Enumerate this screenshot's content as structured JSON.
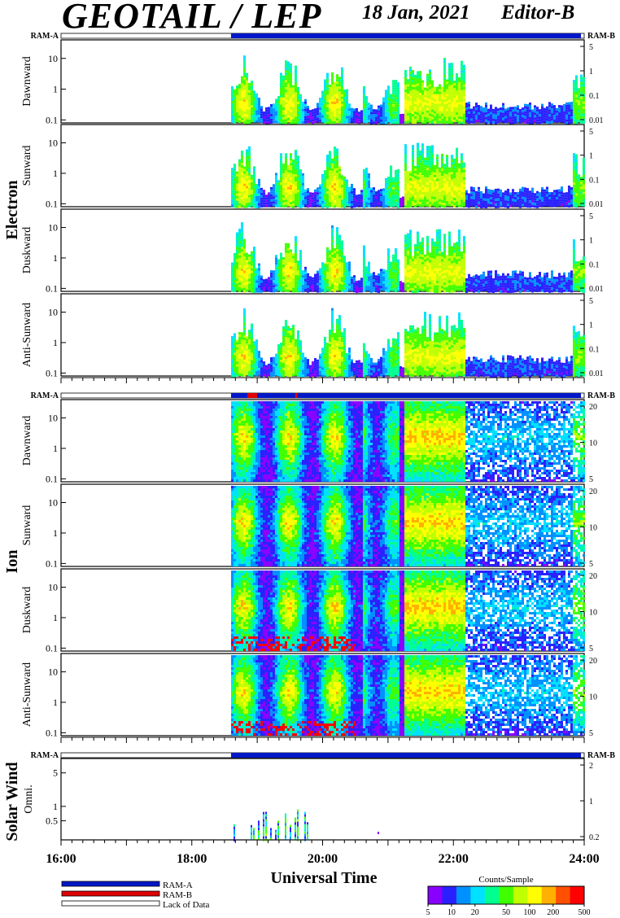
{
  "header": {
    "title": "GEOTAIL / LEP",
    "date": "18 Jan, 2021",
    "editor": "Editor-B"
  },
  "colors": {
    "ram_a": "#0018c8",
    "ram_b": "#e00000",
    "lack_of_data": "#ffffff",
    "spectrogram_scale": [
      "#8a00ff",
      "#2a20ff",
      "#0090ff",
      "#00e0ff",
      "#00ff90",
      "#40ff00",
      "#c0ff00",
      "#ffff00",
      "#ffb000",
      "#ff5000",
      "#ff0000"
    ]
  },
  "chart_data": {
    "type": "heatmap",
    "x_axis": {
      "label": "Universal Time",
      "range_hours": [
        16,
        24
      ],
      "tick_labels": [
        "16:00",
        "18:00",
        "20:00",
        "22:00",
        "24:00"
      ],
      "tick_hours": [
        16,
        18,
        20,
        22,
        24
      ]
    },
    "data_start_hour": 18.6,
    "groups": [
      {
        "label": "Electron",
        "ram_labels": {
          "left": "RAM-A",
          "right": "RAM-B"
        },
        "panels": [
          {
            "label": "Dawnward",
            "left_ticks": [
              "0.1",
              "1",
              "10"
            ],
            "left_tick_values": [
              0.1,
              1,
              10
            ],
            "left_range": [
              0.08,
              40
            ],
            "right_ticks": [
              "0.01",
              "0.1",
              "1",
              "5"
            ]
          },
          {
            "label": "Sunward",
            "left_ticks": [
              "0.1",
              "1",
              "10"
            ],
            "left_tick_values": [
              0.1,
              1,
              10
            ],
            "left_range": [
              0.08,
              40
            ],
            "right_ticks": [
              "0.01",
              "0.1",
              "1",
              "5"
            ]
          },
          {
            "label": "Duskward",
            "left_ticks": [
              "0.1",
              "1",
              "10"
            ],
            "left_tick_values": [
              0.1,
              1,
              10
            ],
            "left_range": [
              0.08,
              40
            ],
            "right_ticks": [
              "0.01",
              "0.1",
              "1",
              "5"
            ]
          },
          {
            "label": "Anti-Sunward",
            "left_ticks": [
              "0.1",
              "1",
              "10"
            ],
            "left_tick_values": [
              0.1,
              1,
              10
            ],
            "left_range": [
              0.08,
              40
            ],
            "right_ticks": [
              "0.01",
              "0.1",
              "1",
              "5"
            ]
          }
        ]
      },
      {
        "label": "Ion",
        "ram_labels": {
          "left": "RAM-A",
          "right": "RAM-B"
        },
        "panels": [
          {
            "label": "Dawnward",
            "left_ticks": [
              "0.1",
              "1",
              "10"
            ],
            "left_tick_values": [
              0.1,
              1,
              10
            ],
            "left_range": [
              0.08,
              40
            ],
            "right_ticks": [
              "5",
              "10",
              "20"
            ]
          },
          {
            "label": "Sunward",
            "left_ticks": [
              "0.1",
              "1",
              "10"
            ],
            "left_tick_values": [
              0.1,
              1,
              10
            ],
            "left_range": [
              0.08,
              40
            ],
            "right_ticks": [
              "5",
              "10",
              "20"
            ]
          },
          {
            "label": "Duskward",
            "left_ticks": [
              "0.1",
              "1",
              "10"
            ],
            "left_tick_values": [
              0.1,
              1,
              10
            ],
            "left_range": [
              0.08,
              40
            ],
            "right_ticks": [
              "5",
              "10",
              "20"
            ]
          },
          {
            "label": "Anti-Sunward",
            "left_ticks": [
              "0.1",
              "1",
              "10"
            ],
            "left_tick_values": [
              0.1,
              1,
              10
            ],
            "left_range": [
              0.08,
              40
            ],
            "right_ticks": [
              "5",
              "10",
              "20"
            ]
          }
        ]
      },
      {
        "label": "Solar Wind",
        "ram_labels": {
          "left": "RAM-A",
          "right": "RAM-B"
        },
        "panels": [
          {
            "label": "Omni.",
            "left_ticks": [
              "0.5",
              "1",
              "5"
            ],
            "left_tick_values": [
              0.5,
              1,
              5
            ],
            "left_range": [
              0.2,
              10
            ],
            "right_ticks": [
              "0.2",
              "1",
              "2"
            ]
          }
        ]
      }
    ],
    "legend": {
      "items": [
        {
          "label": "RAM-A",
          "color": "#0018c8"
        },
        {
          "label": "RAM-B",
          "color": "#e00000"
        },
        {
          "label": "Lack of Data",
          "color": "#ffffff"
        }
      ]
    },
    "colorbar": {
      "title": "Counts/Sample",
      "tick_labels": [
        "5",
        "10",
        "20",
        "50",
        "100",
        "200",
        "500"
      ],
      "tick_values": [
        5,
        10,
        20,
        50,
        100,
        200,
        500
      ],
      "range": [
        5,
        500
      ],
      "scale": "log"
    }
  }
}
